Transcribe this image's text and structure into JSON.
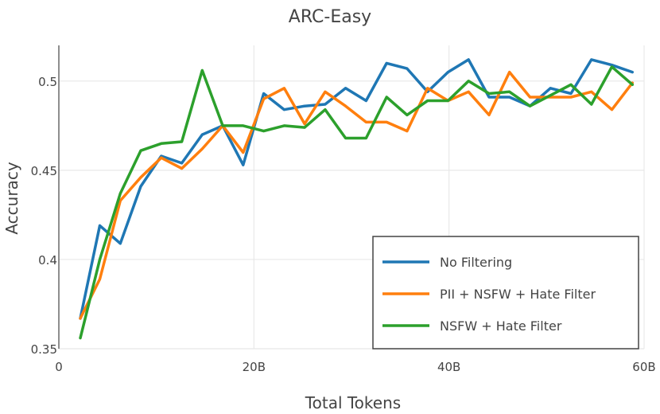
{
  "chart_data": {
    "type": "line",
    "title": "ARC-Easy",
    "xlabel": "Total Tokens",
    "ylabel": "Accuracy",
    "xlim": [
      0,
      60
    ],
    "ylim": [
      0.35,
      0.52
    ],
    "x_ticks": [
      {
        "value": 0,
        "label": "0"
      },
      {
        "value": 20,
        "label": "20B"
      },
      {
        "value": 40,
        "label": "40B"
      },
      {
        "value": 60,
        "label": "60B"
      }
    ],
    "y_ticks": [
      {
        "value": 0.35,
        "label": "0.35"
      },
      {
        "value": 0.4,
        "label": "0.4"
      },
      {
        "value": 0.45,
        "label": "0.45"
      },
      {
        "value": 0.5,
        "label": "0.5"
      }
    ],
    "grid": true,
    "legend_position": "bottom-right",
    "x": [
      2.2,
      4.2,
      6.3,
      8.4,
      10.5,
      12.6,
      14.7,
      16.8,
      18.9,
      21.0,
      23.1,
      25.2,
      27.3,
      29.4,
      31.5,
      33.6,
      35.7,
      37.8,
      39.9,
      42.0,
      44.1,
      46.2,
      48.3,
      50.4,
      52.5,
      54.6,
      56.7,
      58.8
    ],
    "series": [
      {
        "name": "No Filtering",
        "color": "#1f77b4",
        "values": [
          0.367,
          0.419,
          0.409,
          0.441,
          0.458,
          0.454,
          0.47,
          0.475,
          0.453,
          0.493,
          0.484,
          0.486,
          0.487,
          0.496,
          0.489,
          0.51,
          0.507,
          0.494,
          0.505,
          0.512,
          0.491,
          0.491,
          0.486,
          0.496,
          0.493,
          0.512,
          0.509,
          0.505
        ]
      },
      {
        "name": "PII + NSFW + Hate Filter",
        "color": "#ff7f0e",
        "values": [
          0.367,
          0.389,
          0.433,
          0.446,
          0.457,
          0.451,
          0.462,
          0.475,
          0.46,
          0.49,
          0.496,
          0.476,
          0.494,
          0.486,
          0.477,
          0.477,
          0.472,
          0.496,
          0.489,
          0.494,
          0.481,
          0.505,
          0.491,
          0.491,
          0.491,
          0.494,
          0.484,
          0.499
        ]
      },
      {
        "name": "NSFW + Hate Filter",
        "color": "#2ca02c",
        "values": [
          0.356,
          0.4,
          0.437,
          0.461,
          0.465,
          0.466,
          0.506,
          0.475,
          0.475,
          0.472,
          0.475,
          0.474,
          0.484,
          0.468,
          0.468,
          0.491,
          0.481,
          0.489,
          0.489,
          0.5,
          0.493,
          0.494,
          0.486,
          0.492,
          0.498,
          0.487,
          0.508,
          0.498
        ]
      }
    ]
  }
}
